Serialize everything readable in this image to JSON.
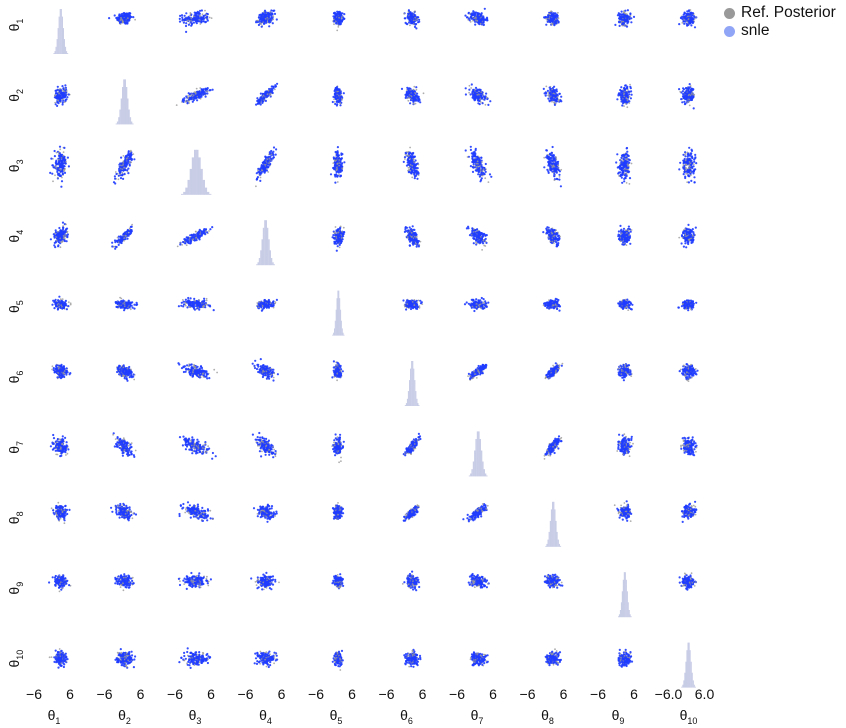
{
  "chart_data": {
    "type": "scatter",
    "kind": "pairplot-corner",
    "variables": [
      "θ1",
      "θ2",
      "θ3",
      "θ4",
      "θ5",
      "θ6",
      "θ7",
      "θ8",
      "θ9",
      "θ10"
    ],
    "var_base": "θ",
    "var_subs": [
      "1",
      "2",
      "3",
      "4",
      "5",
      "6",
      "7",
      "8",
      "9",
      "10"
    ],
    "axis_range": [
      -6,
      6
    ],
    "x_tick_labels": [
      [
        "−6",
        "6"
      ],
      [
        "−6",
        "6"
      ],
      [
        "−6",
        "6"
      ],
      [
        "−6",
        "6"
      ],
      [
        "−6",
        "6"
      ],
      [
        "−6",
        "6"
      ],
      [
        "−6",
        "6"
      ],
      [
        "−6",
        "6"
      ],
      [
        "−6",
        "6"
      ],
      [
        "−6.0",
        "6.0"
      ]
    ],
    "series": [
      {
        "name": "Ref. Posterior",
        "color": "#999999"
      },
      {
        "name": "snle",
        "color": "#1f3cff",
        "legend_color": "#91a5f7"
      }
    ],
    "diag_hist_color": "#c9cde6",
    "posterior_means": [
      0.6,
      0.0,
      0.1,
      0.0,
      0.2,
      0.5,
      0.1,
      0.5,
      0.6,
      0.0
    ],
    "posterior_spread": [
      0.28,
      0.34,
      0.58,
      0.36,
      0.18,
      0.28,
      0.36,
      0.3,
      0.26,
      0.28
    ],
    "correlations": [
      {
        "i": 1,
        "j": 2,
        "rho": 0.8
      },
      {
        "i": 1,
        "j": 3,
        "rho": 0.85
      },
      {
        "i": 2,
        "j": 3,
        "rho": 0.85
      },
      {
        "i": 5,
        "j": 6,
        "rho": 0.8
      },
      {
        "i": 5,
        "j": 7,
        "rho": 0.8
      },
      {
        "i": 6,
        "j": 7,
        "rho": 0.8
      },
      {
        "i": 0,
        "j": 1,
        "rho": 0.1
      },
      {
        "i": 0,
        "j": 2,
        "rho": 0.1
      },
      {
        "i": 0,
        "j": 3,
        "rho": 0.25
      },
      {
        "i": 1,
        "j": 5,
        "rho": -0.4
      },
      {
        "i": 1,
        "j": 6,
        "rho": -0.55
      },
      {
        "i": 2,
        "j": 5,
        "rho": -0.55
      },
      {
        "i": 2,
        "j": 6,
        "rho": -0.65
      },
      {
        "i": 3,
        "j": 5,
        "rho": -0.5
      },
      {
        "i": 3,
        "j": 6,
        "rho": -0.55
      },
      {
        "i": 1,
        "j": 7,
        "rho": -0.35
      },
      {
        "i": 2,
        "j": 7,
        "rho": -0.5
      },
      {
        "i": 3,
        "j": 7,
        "rho": -0.4
      },
      {
        "i": 0,
        "j": 5,
        "rho": -0.2
      },
      {
        "i": 0,
        "j": 6,
        "rho": -0.2
      },
      {
        "i": 0,
        "j": 7,
        "rho": -0.15
      },
      {
        "i": 4,
        "j": 3,
        "rho": 0.1
      }
    ],
    "grid": false,
    "legend_position": "top-right"
  },
  "legend": {
    "items": [
      {
        "label": "Ref. Posterior",
        "color": "#999999"
      },
      {
        "label": "snle",
        "color": "#91a5f7"
      }
    ]
  }
}
